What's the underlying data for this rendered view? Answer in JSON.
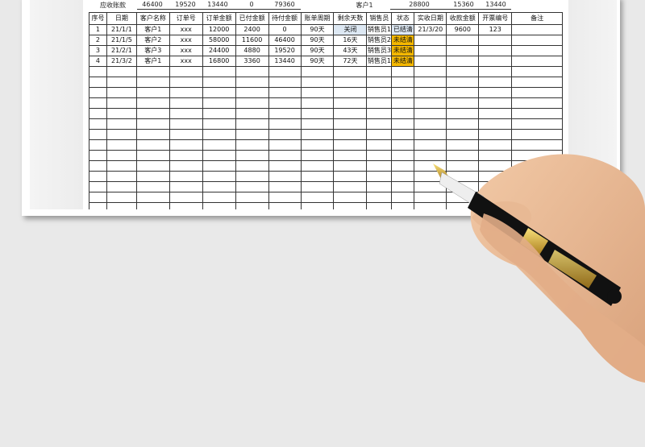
{
  "summary": {
    "label": "应收账款",
    "values": [
      "46400",
      "19520",
      "13440",
      "0",
      "79360"
    ],
    "customer": "客户1",
    "customer_values": [
      "28800",
      "15360",
      "13440"
    ]
  },
  "table": {
    "headers": [
      "序号",
      "日期",
      "客户名称",
      "订单号",
      "订单金额",
      "已付金额",
      "待付金额",
      "账单周期",
      "剩余天数",
      "销售员",
      "状态",
      "实收日期",
      "收款金额",
      "开票编号",
      "备注"
    ],
    "rows": [
      [
        "1",
        "21/1/1",
        "客户1",
        "xxx",
        "12000",
        "2400",
        "0",
        "90天",
        "关闭",
        "销售员1",
        "已结清",
        "21/3/20",
        "9600",
        "123",
        ""
      ],
      [
        "2",
        "21/1/5",
        "客户2",
        "xxx",
        "58000",
        "11600",
        "46400",
        "90天",
        "16天",
        "销售员2",
        "未结清",
        "",
        "",
        "",
        ""
      ],
      [
        "3",
        "21/2/1",
        "客户3",
        "xxx",
        "24400",
        "4880",
        "19520",
        "90天",
        "43天",
        "销售员3",
        "未结清",
        "",
        "",
        "",
        ""
      ],
      [
        "4",
        "21/3/2",
        "客户1",
        "xxx",
        "16800",
        "3360",
        "13440",
        "90天",
        "72天",
        "销售员1",
        "未结清",
        "",
        "",
        "",
        ""
      ]
    ],
    "empty_rows": 14
  },
  "colors": {
    "unpaid_status": "#f5b800",
    "paid_status": "#dde8f3",
    "grid": "#333333",
    "background": "#e9e9e9"
  }
}
